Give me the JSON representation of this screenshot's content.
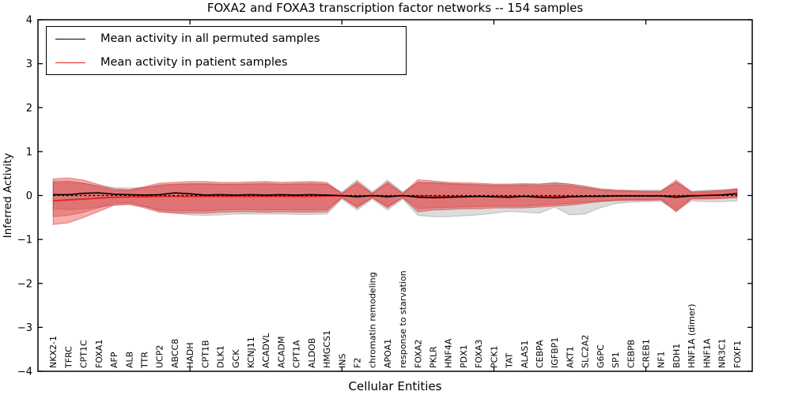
{
  "title": "FOXA2 and FOXA3 transcription factor networks -- 154 samples",
  "axes": {
    "xlabel": "Cellular Entities",
    "ylabel": "Inferred Activity",
    "ytick_labels": [
      "4",
      "3",
      "2",
      "1",
      "0",
      "−1",
      "−2",
      "−3",
      "−4"
    ],
    "ytick_values": [
      4,
      3,
      2,
      1,
      0,
      -1,
      -2,
      -3,
      -4
    ],
    "ylim": [
      -4,
      4
    ]
  },
  "legend": {
    "items": [
      {
        "label": "Mean activity in all permuted samples",
        "color": "#000000"
      },
      {
        "label": "Mean activity in patient samples",
        "color": "#e32222"
      }
    ]
  },
  "chart_data": {
    "type": "line",
    "title": "FOXA2 and FOXA3 transcription factor networks -- 154 samples",
    "xlabel": "Cellular Entities",
    "ylabel": "Inferred Activity",
    "ylim": [
      -4,
      4
    ],
    "grid": false,
    "legend_position": "upper left",
    "xtick_indices": [
      9,
      19,
      29,
      39
    ],
    "categories": [
      "NKX2-1",
      "TFRC",
      "CPT1C",
      "FOXA1",
      "AFP",
      "ALB",
      "TTR",
      "UCP2",
      "ABCC8",
      "HADH",
      "CPT1B",
      "DLK1",
      "GCK",
      "KCNJ11",
      "ACADVL",
      "ACADM",
      "CPT1A",
      "ALDOB",
      "HMGCS1",
      "INS",
      "F2",
      "chromatin remodeling",
      "APOA1",
      "response to starvation",
      "FOXA2",
      "PKLR",
      "HNF4A",
      "PDX1",
      "FOXA3",
      "PCK1",
      "TAT",
      "ALAS1",
      "CEBPA",
      "IGFBP1",
      "AKT1",
      "SLC2A2",
      "G6PC",
      "SP1",
      "CEBPB",
      "CREB1",
      "NF1",
      "BDH1",
      "HNF1A (dimer)",
      "HNF1A",
      "NR3C1",
      "FOXF1"
    ],
    "series": [
      {
        "name": "Mean activity in all permuted samples",
        "color": "#000000",
        "values": [
          0.02,
          0.02,
          0.05,
          0.06,
          0.03,
          0.02,
          0.01,
          0.02,
          0.06,
          0.04,
          0.01,
          0.02,
          0.01,
          0.02,
          0.01,
          0.02,
          0.01,
          0.02,
          0.01,
          0.0,
          -0.03,
          0.0,
          -0.03,
          0.0,
          -0.04,
          -0.05,
          -0.04,
          -0.03,
          -0.02,
          -0.03,
          -0.04,
          -0.02,
          -0.04,
          -0.05,
          -0.03,
          -0.02,
          -0.02,
          -0.01,
          -0.01,
          -0.01,
          -0.01,
          -0.04,
          -0.01,
          0.0,
          0.01,
          0.04
        ]
      },
      {
        "name": "Mean activity in patient samples",
        "color": "#e32222",
        "values": [
          -0.12,
          -0.1,
          -0.08,
          -0.06,
          -0.04,
          -0.03,
          -0.03,
          -0.02,
          -0.02,
          -0.02,
          -0.02,
          -0.02,
          -0.02,
          -0.02,
          -0.02,
          -0.02,
          -0.02,
          -0.02,
          -0.01,
          -0.01,
          -0.01,
          -0.01,
          -0.01,
          -0.01,
          -0.01,
          -0.02,
          -0.02,
          -0.02,
          -0.02,
          -0.02,
          -0.02,
          -0.02,
          -0.02,
          -0.02,
          -0.02,
          -0.02,
          -0.01,
          -0.01,
          -0.01,
          -0.01,
          -0.01,
          -0.01,
          0.0,
          0.01,
          0.02,
          0.05
        ]
      }
    ],
    "zero_line": {
      "value": 0,
      "style": "dotted",
      "color": "#000000"
    },
    "bands": [
      {
        "name": "permuted-samples-band",
        "fill": "#828282",
        "fill_opacity": 0.28,
        "stroke": "#828282",
        "stroke_opacity": 0.45,
        "upper": [
          0.28,
          0.3,
          0.28,
          0.22,
          0.18,
          0.17,
          0.18,
          0.22,
          0.25,
          0.26,
          0.26,
          0.25,
          0.25,
          0.25,
          0.25,
          0.25,
          0.25,
          0.25,
          0.25,
          0.08,
          0.35,
          0.08,
          0.35,
          0.08,
          0.3,
          0.3,
          0.28,
          0.26,
          0.25,
          0.24,
          0.24,
          0.25,
          0.26,
          0.3,
          0.26,
          0.22,
          0.16,
          0.13,
          0.12,
          0.12,
          0.12,
          0.3,
          0.1,
          0.12,
          0.13,
          0.14
        ],
        "lower": [
          -0.3,
          -0.32,
          -0.3,
          -0.26,
          -0.22,
          -0.2,
          -0.25,
          -0.35,
          -0.4,
          -0.44,
          -0.45,
          -0.44,
          -0.42,
          -0.42,
          -0.42,
          -0.42,
          -0.43,
          -0.43,
          -0.42,
          -0.08,
          -0.33,
          -0.08,
          -0.33,
          -0.08,
          -0.45,
          -0.48,
          -0.48,
          -0.46,
          -0.44,
          -0.4,
          -0.36,
          -0.38,
          -0.4,
          -0.26,
          -0.44,
          -0.42,
          -0.28,
          -0.18,
          -0.15,
          -0.14,
          -0.13,
          -0.35,
          -0.12,
          -0.14,
          -0.14,
          -0.12
        ]
      },
      {
        "name": "patient-samples-outer-band",
        "fill": "#e32222",
        "fill_opacity": 0.36,
        "stroke": "#cc2222",
        "stroke_opacity": 0.5,
        "upper": [
          0.38,
          0.4,
          0.35,
          0.25,
          0.15,
          0.13,
          0.2,
          0.28,
          0.3,
          0.32,
          0.32,
          0.3,
          0.3,
          0.31,
          0.32,
          0.3,
          0.31,
          0.32,
          0.3,
          0.05,
          0.31,
          0.05,
          0.31,
          0.05,
          0.36,
          0.33,
          0.3,
          0.29,
          0.28,
          0.26,
          0.26,
          0.27,
          0.26,
          0.28,
          0.26,
          0.2,
          0.14,
          0.12,
          0.11,
          0.1,
          0.1,
          0.35,
          0.08,
          0.1,
          0.12,
          0.16
        ],
        "lower": [
          -0.66,
          -0.62,
          -0.5,
          -0.36,
          -0.22,
          -0.2,
          -0.28,
          -0.38,
          -0.4,
          -0.4,
          -0.4,
          -0.38,
          -0.37,
          -0.37,
          -0.38,
          -0.37,
          -0.38,
          -0.38,
          -0.37,
          -0.05,
          -0.28,
          -0.05,
          -0.28,
          -0.05,
          -0.37,
          -0.33,
          -0.32,
          -0.3,
          -0.3,
          -0.28,
          -0.28,
          -0.28,
          -0.26,
          -0.24,
          -0.22,
          -0.18,
          -0.14,
          -0.12,
          -0.11,
          -0.11,
          -0.1,
          -0.37,
          -0.08,
          -0.08,
          -0.07,
          -0.05
        ]
      },
      {
        "name": "patient-samples-inner-band",
        "fill": "#e32222",
        "fill_opacity": 0.3,
        "stroke": "#cc2222",
        "stroke_opacity": 0.4,
        "upper": [
          0.32,
          0.33,
          0.28,
          0.2,
          0.12,
          0.11,
          0.17,
          0.24,
          0.26,
          0.27,
          0.27,
          0.26,
          0.26,
          0.27,
          0.28,
          0.26,
          0.27,
          0.28,
          0.26,
          0.04,
          0.27,
          0.04,
          0.27,
          0.04,
          0.3,
          0.28,
          0.26,
          0.25,
          0.24,
          0.22,
          0.22,
          0.23,
          0.22,
          0.24,
          0.22,
          0.17,
          0.12,
          0.1,
          0.09,
          0.08,
          0.08,
          0.3,
          0.06,
          0.08,
          0.09,
          0.13
        ],
        "lower": [
          -0.48,
          -0.45,
          -0.38,
          -0.28,
          -0.18,
          -0.16,
          -0.24,
          -0.33,
          -0.35,
          -0.35,
          -0.35,
          -0.33,
          -0.32,
          -0.32,
          -0.33,
          -0.32,
          -0.33,
          -0.33,
          -0.32,
          -0.04,
          -0.25,
          -0.04,
          -0.25,
          -0.04,
          -0.3,
          -0.28,
          -0.27,
          -0.26,
          -0.25,
          -0.24,
          -0.24,
          -0.24,
          -0.22,
          -0.2,
          -0.18,
          -0.15,
          -0.12,
          -0.1,
          -0.09,
          -0.09,
          -0.08,
          -0.32,
          -0.06,
          -0.06,
          -0.05,
          -0.03
        ]
      }
    ]
  }
}
